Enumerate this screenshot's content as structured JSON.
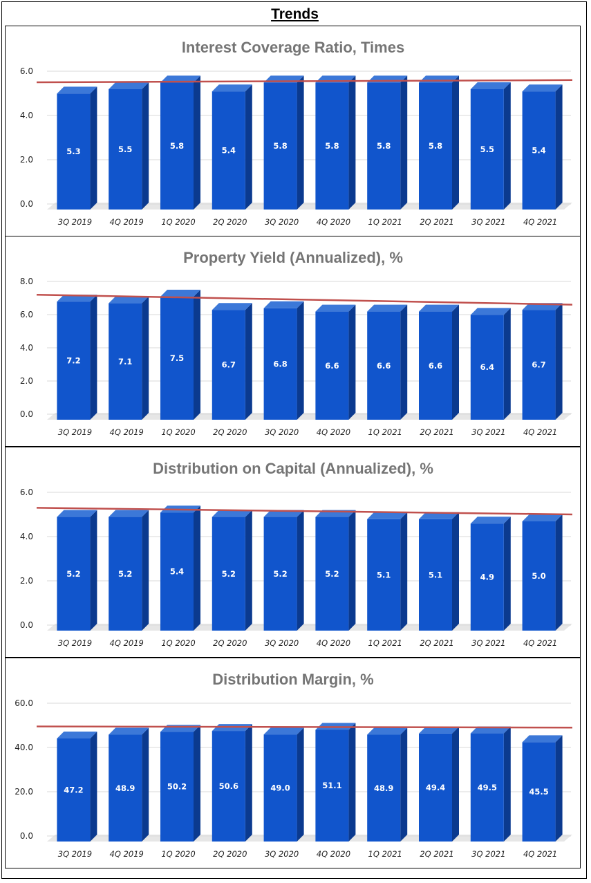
{
  "page_title": "Trends",
  "colors": {
    "bar_front": "#1155cc",
    "bar_top": "#3c78d8",
    "bar_side": "#0b3a8f",
    "trend": "#c0504d",
    "grid": "#d9d9d9",
    "floor": "#e6e6e6"
  },
  "chart_data": [
    {
      "type": "bar",
      "title": "Interest Coverage Ratio, Times",
      "categories": [
        "3Q 2019",
        "4Q 2019",
        "1Q 2020",
        "2Q 2020",
        "3Q 2020",
        "4Q 2020",
        "1Q 2021",
        "2Q 2021",
        "3Q 2021",
        "4Q 2021"
      ],
      "values": [
        5.3,
        5.5,
        5.8,
        5.4,
        5.8,
        5.8,
        5.8,
        5.8,
        5.5,
        5.4
      ],
      "ylim": [
        0,
        6.0
      ],
      "yticks": [
        "0.0",
        "2.0",
        "4.0",
        "6.0"
      ],
      "trendline": [
        5.5,
        5.6
      ]
    },
    {
      "type": "bar",
      "title": "Property Yield (Annualized), %",
      "categories": [
        "3Q 2019",
        "4Q 2019",
        "1Q 2020",
        "2Q 2020",
        "3Q 2020",
        "4Q 2020",
        "1Q 2021",
        "2Q 2021",
        "3Q 2021",
        "4Q 2021"
      ],
      "values": [
        7.2,
        7.1,
        7.5,
        6.7,
        6.8,
        6.6,
        6.6,
        6.6,
        6.4,
        6.7
      ],
      "ylim": [
        0,
        8.0
      ],
      "yticks": [
        "0.0",
        "2.0",
        "4.0",
        "6.0",
        "8.0"
      ],
      "trendline": [
        7.2,
        6.6
      ]
    },
    {
      "type": "bar",
      "title": "Distribution on Capital (Annualized), %",
      "categories": [
        "3Q 2019",
        "4Q 2019",
        "1Q 2020",
        "2Q 2020",
        "3Q 2020",
        "4Q 2020",
        "1Q 2021",
        "2Q 2021",
        "3Q 2021",
        "4Q 2021"
      ],
      "values": [
        5.2,
        5.2,
        5.4,
        5.2,
        5.2,
        5.2,
        5.1,
        5.1,
        4.9,
        5.0
      ],
      "ylim": [
        0,
        6.0
      ],
      "yticks": [
        "0.0",
        "2.0",
        "4.0",
        "6.0"
      ],
      "trendline": [
        5.3,
        5.0
      ]
    },
    {
      "type": "bar",
      "title": "Distribution Margin, %",
      "categories": [
        "3Q 2019",
        "4Q 2019",
        "1Q 2020",
        "2Q 2020",
        "3Q 2020",
        "4Q 2020",
        "1Q 2021",
        "2Q 2021",
        "3Q 2021",
        "4Q 2021"
      ],
      "values": [
        47.2,
        48.9,
        50.2,
        50.6,
        49.0,
        51.1,
        48.9,
        49.4,
        49.5,
        45.5
      ],
      "ylim": [
        0,
        60.0
      ],
      "yticks": [
        "0.0",
        "20.0",
        "40.0",
        "60.0"
      ],
      "trendline": [
        49.5,
        49.0
      ]
    }
  ]
}
